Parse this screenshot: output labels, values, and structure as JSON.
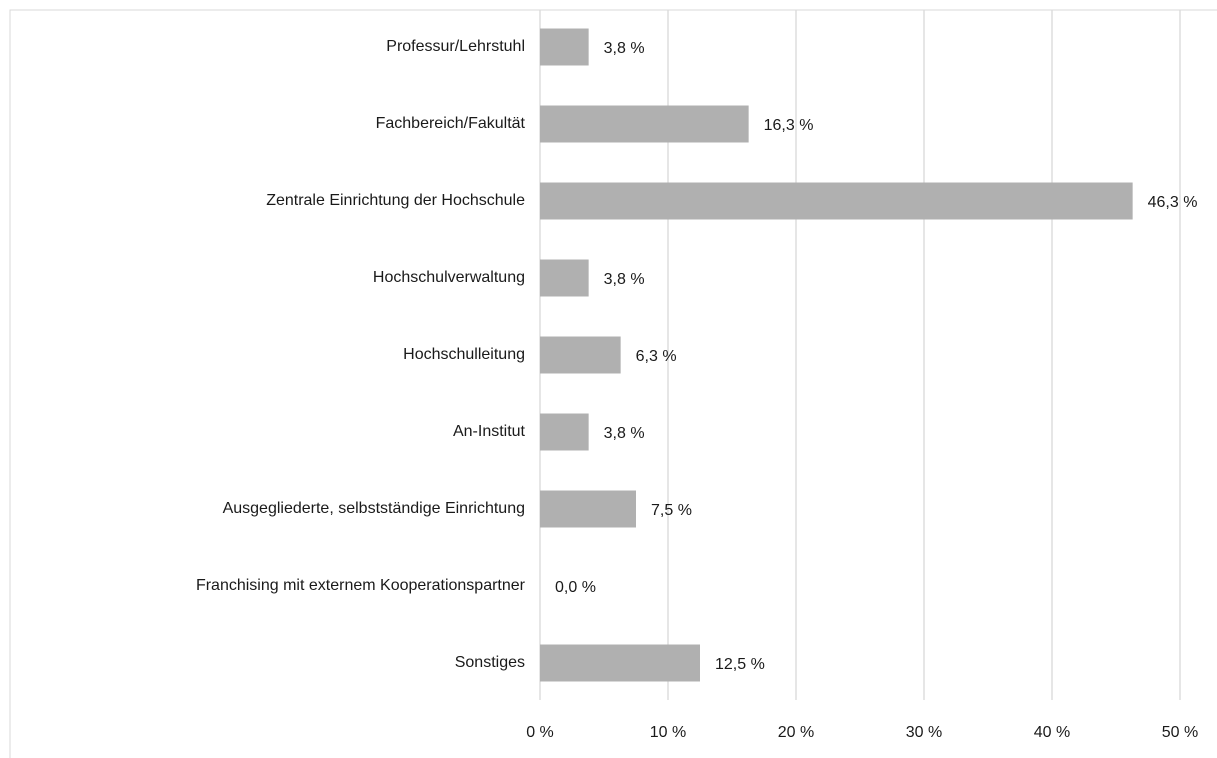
{
  "chart_data": {
    "type": "bar",
    "orientation": "horizontal",
    "categories": [
      "Professur/Lehrstuhl",
      "Fachbereich/Fakultät",
      "Zentrale Einrichtung der Hochschule",
      "Hochschulverwaltung",
      "Hochschulleitung",
      "An-Institut",
      "Ausgegliederte, selbstständige Einrichtung",
      "Franchising mit externem Kooperationspartner",
      "Sonstiges"
    ],
    "values": [
      3.8,
      16.3,
      46.3,
      3.8,
      6.3,
      3.8,
      7.5,
      0.0,
      12.5
    ],
    "value_labels": [
      "3,8 %",
      "16,3 %",
      "46,3 %",
      "3,8 %",
      "6,3 %",
      "3,8 %",
      "7,5 %",
      "0,0 %",
      "12,5 %"
    ],
    "color": "#b0b0b0",
    "xlim": [
      0,
      50
    ],
    "xticks": [
      {
        "value": 0,
        "label": "0 %"
      },
      {
        "value": 10,
        "label": "10 %"
      },
      {
        "value": 20,
        "label": "20 %"
      },
      {
        "value": 30,
        "label": "30 %"
      },
      {
        "value": 40,
        "label": "40 %"
      },
      {
        "value": 50,
        "label": "50 %"
      }
    ],
    "grid": true
  }
}
